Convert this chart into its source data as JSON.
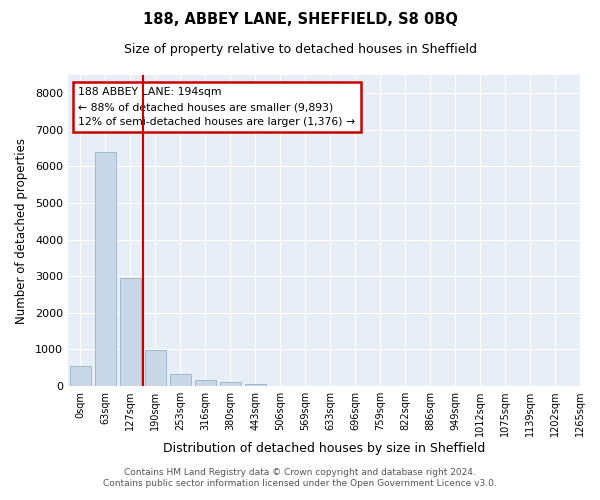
{
  "title": "188, ABBEY LANE, SHEFFIELD, S8 0BQ",
  "subtitle": "Size of property relative to detached houses in Sheffield",
  "xlabel": "Distribution of detached houses by size in Sheffield",
  "ylabel": "Number of detached properties",
  "footer_line1": "Contains HM Land Registry data © Crown copyright and database right 2024.",
  "footer_line2": "Contains public sector information licensed under the Open Government Licence v3.0.",
  "annotation_line1": "188 ABBEY LANE: 194sqm",
  "annotation_line2": "← 88% of detached houses are smaller (9,893)",
  "annotation_line3": "12% of semi-detached houses are larger (1,376) →",
  "bar_color": "#c8d8e8",
  "bar_edge_color": "#a0b8d0",
  "vline_color": "#cc0000",
  "annotation_box_color": "#cc0000",
  "bins": [
    "0sqm",
    "63sqm",
    "127sqm",
    "190sqm",
    "253sqm",
    "316sqm",
    "380sqm",
    "443sqm",
    "506sqm",
    "569sqm",
    "633sqm",
    "696sqm",
    "759sqm",
    "822sqm",
    "886sqm",
    "949sqm",
    "1012sqm",
    "1075sqm",
    "1139sqm",
    "1202sqm",
    "1265sqm"
  ],
  "values": [
    550,
    6400,
    2950,
    980,
    340,
    160,
    110,
    70,
    0,
    0,
    0,
    0,
    0,
    0,
    0,
    0,
    0,
    0,
    0,
    0
  ],
  "ylim": [
    0,
    8500
  ],
  "yticks": [
    0,
    1000,
    2000,
    3000,
    4000,
    5000,
    6000,
    7000,
    8000
  ],
  "figsize": [
    6.0,
    5.0
  ],
  "dpi": 100,
  "bg_color": "#e8eef6"
}
